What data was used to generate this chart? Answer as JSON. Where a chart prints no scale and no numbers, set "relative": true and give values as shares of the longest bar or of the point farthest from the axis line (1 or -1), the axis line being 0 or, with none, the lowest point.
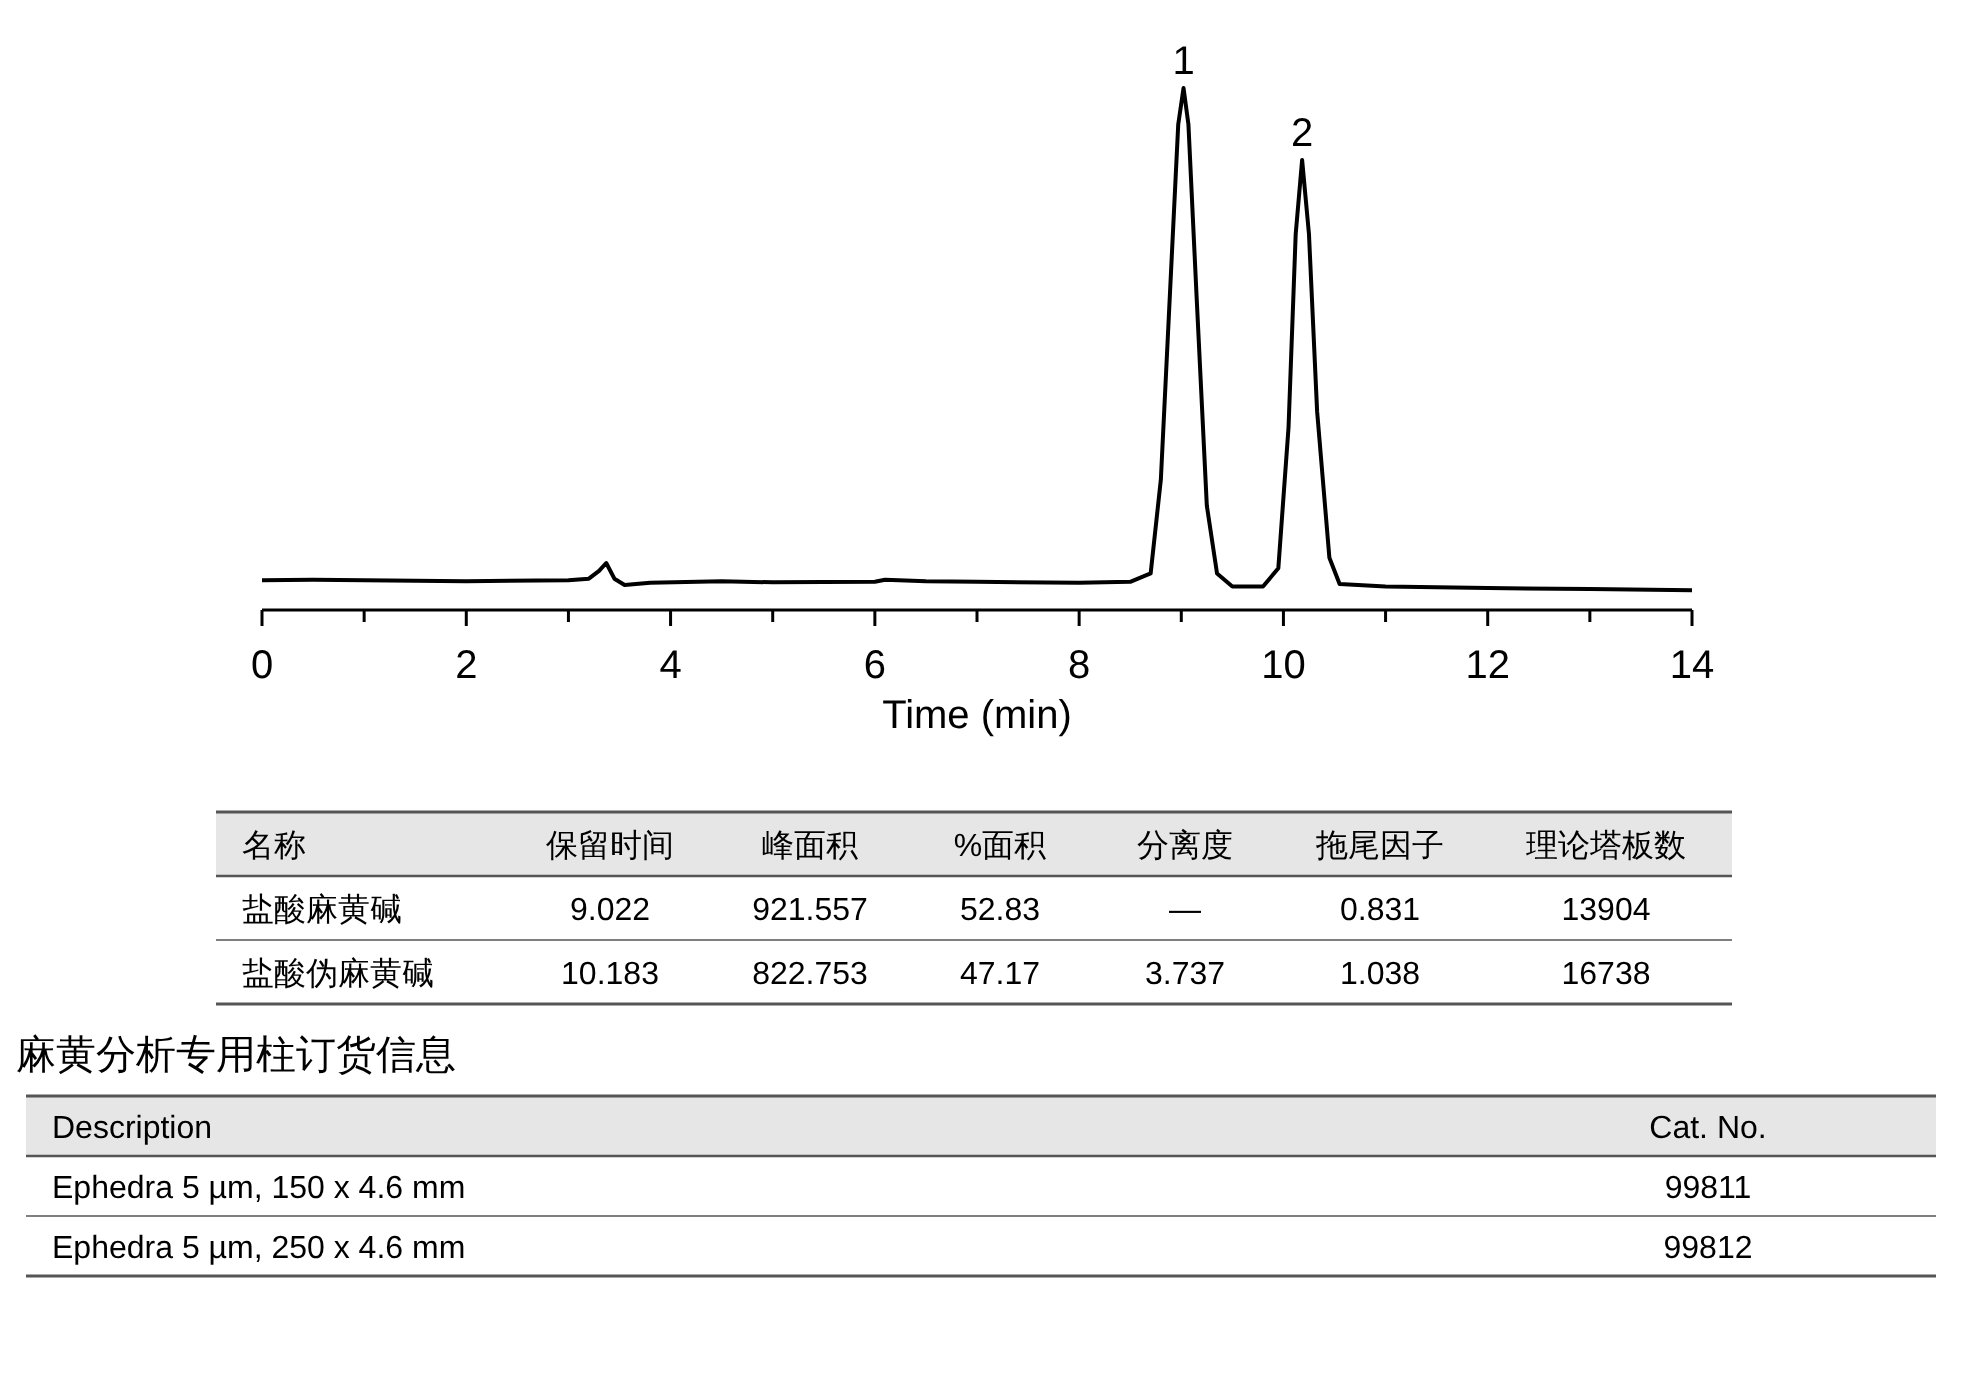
{
  "chart_data": [
    {
      "type": "line",
      "relative": true,
      "xlabel": "Time (min)",
      "xlim": [
        0,
        14
      ],
      "xticks": [
        0,
        {
          "value": 1,
          "label": null
        },
        2,
        {
          "value": 3,
          "label": null
        },
        4,
        {
          "value": 5,
          "label": null
        },
        6,
        {
          "value": 7,
          "label": null
        },
        8,
        {
          "value": 9,
          "label": null
        },
        10,
        {
          "value": 11,
          "label": null
        },
        12,
        {
          "value": 13,
          "label": null
        },
        14
      ],
      "tick_labels": "x",
      "grid": false,
      "marker": "none",
      "line_style": "solid",
      "annotations": [
        {
          "text": "1",
          "x": 9.022,
          "y": 1
        },
        {
          "text": "2",
          "x": 10.183,
          "y": 0.862
        }
      ],
      "series": [
        {
          "color": "#000000",
          "x": [
            0,
            0.5,
            1,
            2,
            3,
            3.2,
            3.3,
            3.37,
            3.45,
            3.55,
            3.8,
            4.5,
            5,
            6,
            6.1,
            6.5,
            7,
            8,
            8.5,
            8.7,
            8.8,
            8.9,
            8.97,
            9.022,
            9.07,
            9.15,
            9.25,
            9.35,
            9.5,
            9.8,
            9.95,
            10.05,
            10.12,
            10.183,
            10.25,
            10.33,
            10.45,
            10.55,
            11,
            12,
            13,
            14
          ],
          "values": [
            0.057,
            0.058,
            0.057,
            0.055,
            0.057,
            0.06,
            0.075,
            0.09,
            0.06,
            0.048,
            0.052,
            0.055,
            0.053,
            0.054,
            0.058,
            0.055,
            0.054,
            0.052,
            0.054,
            0.07,
            0.25,
            0.65,
            0.93,
            1,
            0.93,
            0.6,
            0.2,
            0.07,
            0.045,
            0.045,
            0.08,
            0.35,
            0.72,
            0.862,
            0.72,
            0.38,
            0.1,
            0.05,
            0.045,
            0.042,
            0.04,
            0.038
          ]
        }
      ]
    },
    {
      "type": "other",
      "categories": [
        "名称",
        "保留时间",
        "峰面积",
        "%面积",
        "分离度",
        "拖尾因子",
        "理论塔板数"
      ],
      "cell_labels": [
        [
          "盐酸麻黄碱",
          "9.022",
          "921.557",
          "52.83",
          "—",
          "0.831",
          "13904"
        ],
        [
          "盐酸伪麻黄碱",
          "10.183",
          "822.753",
          "47.17",
          "3.737",
          "1.038",
          "16738"
        ]
      ]
    },
    {
      "type": "other",
      "title": "麻黄分析专用柱订货信息",
      "categories": [
        "Description",
        "Cat. No."
      ],
      "cell_labels": [
        [
          "Ephedra 5 µm, 150 x 4.6 mm",
          "99811"
        ],
        [
          "Ephedra 5 µm, 250 x 4.6 mm",
          "99812"
        ]
      ]
    }
  ]
}
